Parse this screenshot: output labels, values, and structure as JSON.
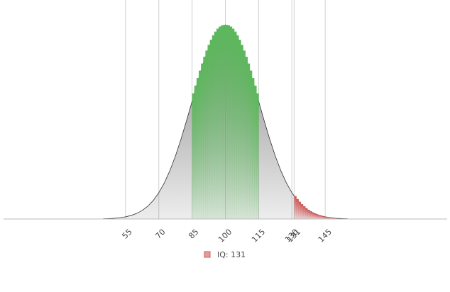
{
  "chart_data": {
    "type": "area",
    "color": "#888888",
    "x": [
      45,
      47.5,
      50,
      52.5,
      55,
      57.5,
      60,
      62.5,
      65,
      67.5,
      70,
      72.5,
      75,
      77.5,
      80,
      82.5,
      85,
      87.5,
      90,
      92.5,
      95,
      97.5,
      100,
      102.5,
      105,
      107.5,
      110,
      112.5,
      115,
      117.5,
      120,
      122.5,
      125,
      127.5,
      130,
      132.5,
      135,
      137.5,
      140,
      142.5,
      145,
      147.5,
      150,
      152.5,
      155
    ],
    "values": [
      0.003,
      0.006,
      0.01,
      0.018,
      0.03,
      0.048,
      0.076,
      0.117,
      0.175,
      0.254,
      0.36,
      0.496,
      0.663,
      0.864,
      1.094,
      1.347,
      1.613,
      1.88,
      2.13,
      2.347,
      2.516,
      2.623,
      2.66,
      2.623,
      2.516,
      2.347,
      2.13,
      1.88,
      1.613,
      1.347,
      1.094,
      0.864,
      0.663,
      0.496,
      0.36,
      0.254,
      0.175,
      0.117,
      0.076,
      0.048,
      0.03,
      0.018,
      0.01,
      0.006,
      0.003
    ],
    "ranges": [
      {
        "color": "#5cb85c",
        "bins": [
          85,
          86,
          87,
          88,
          89,
          90,
          91,
          92,
          93,
          94,
          95,
          96,
          97,
          98,
          99,
          100,
          101,
          102,
          103,
          104,
          105,
          106,
          107,
          108,
          109,
          110,
          111,
          112,
          113,
          114,
          115
        ],
        "values": [
          1.721,
          1.827,
          1.931,
          2.033,
          2.13,
          2.222,
          2.307,
          2.385,
          2.455,
          2.516,
          2.567,
          2.607,
          2.636,
          2.654,
          2.66,
          2.66,
          2.654,
          2.636,
          2.607,
          2.567,
          2.516,
          2.455,
          2.385,
          2.307,
          2.222,
          2.13,
          2.033,
          1.931,
          1.827,
          1.721
        ]
      },
      {
        "name": "IQ: 131",
        "color": "#d05a5a",
        "bins": [
          131,
          132,
          133,
          134,
          135,
          136,
          137,
          138,
          139,
          140,
          141,
          142,
          143,
          144,
          145,
          146,
          147,
          148,
          149,
          150
        ],
        "values": [
          0.314,
          0.273,
          0.236,
          0.204,
          0.175,
          0.149,
          0.127,
          0.107,
          0.09,
          0.076,
          0.063,
          0.053,
          0.044,
          0.036,
          0.03,
          0.024,
          0.02,
          0.016,
          0.013
        ]
      }
    ],
    "xlim": [
      0,
      200
    ],
    "ylim": [
      0,
      3
    ],
    "xticks": [
      55,
      70,
      85,
      100,
      115,
      130,
      131,
      145
    ],
    "grid": true,
    "legend": "bottom"
  }
}
